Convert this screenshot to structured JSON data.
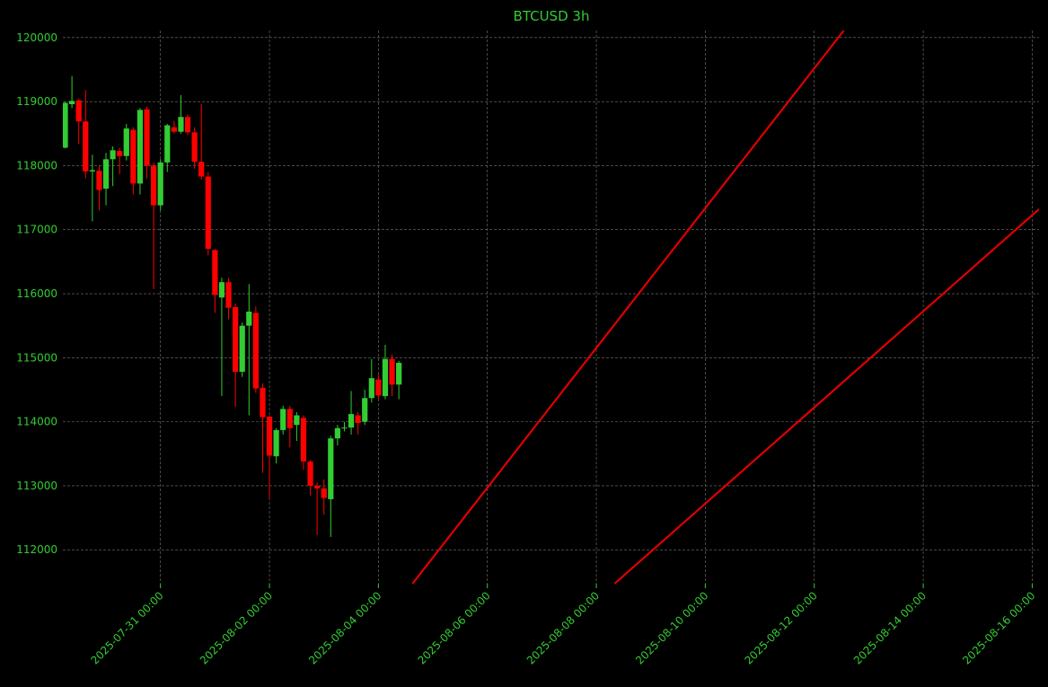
{
  "chart_data": {
    "type": "candlestick",
    "title": "BTCUSD 3h",
    "x": [
      "2025-07-29 06:00",
      "2025-07-29 09:00",
      "2025-07-29 12:00",
      "2025-07-29 15:00",
      "2025-07-29 18:00",
      "2025-07-29 21:00",
      "2025-07-30 00:00",
      "2025-07-30 03:00",
      "2025-07-30 06:00",
      "2025-07-30 09:00",
      "2025-07-30 12:00",
      "2025-07-30 15:00",
      "2025-07-30 18:00",
      "2025-07-30 21:00",
      "2025-07-31 00:00",
      "2025-07-31 03:00",
      "2025-07-31 06:00",
      "2025-07-31 09:00",
      "2025-07-31 12:00",
      "2025-07-31 15:00",
      "2025-07-31 18:00",
      "2025-07-31 21:00",
      "2025-08-01 00:00",
      "2025-08-01 03:00",
      "2025-08-01 06:00",
      "2025-08-01 09:00",
      "2025-08-01 12:00",
      "2025-08-01 15:00",
      "2025-08-01 18:00",
      "2025-08-01 21:00",
      "2025-08-02 00:00",
      "2025-08-02 03:00",
      "2025-08-02 06:00",
      "2025-08-02 09:00",
      "2025-08-02 12:00",
      "2025-08-02 15:00",
      "2025-08-02 18:00",
      "2025-08-02 21:00",
      "2025-08-03 00:00",
      "2025-08-03 03:00",
      "2025-08-03 06:00",
      "2025-08-03 09:00",
      "2025-08-03 12:00",
      "2025-08-03 15:00",
      "2025-08-03 18:00",
      "2025-08-03 21:00",
      "2025-08-04 00:00",
      "2025-08-04 03:00",
      "2025-08-04 06:00",
      "2025-08-04 09:00"
    ],
    "open": [
      118280,
      118960,
      119020,
      118690,
      117910,
      117920,
      117640,
      118100,
      118230,
      118150,
      118560,
      117720,
      118880,
      118000,
      117380,
      118050,
      118600,
      118530,
      118760,
      118520,
      118060,
      117830,
      116680,
      115940,
      116180,
      115790,
      114780,
      115500,
      115700,
      114530,
      114080,
      113460,
      113870,
      114200,
      113950,
      114060,
      113380,
      113000,
      112960,
      112790,
      113740,
      113900,
      113910,
      114100,
      114000,
      114370,
      114660,
      114400,
      114980,
      114580
    ],
    "high": [
      119000,
      119400,
      119050,
      119180,
      118170,
      118000,
      118200,
      118300,
      118280,
      118650,
      118600,
      118900,
      118920,
      118050,
      118100,
      118650,
      118700,
      119100,
      118800,
      118600,
      118960,
      117900,
      116700,
      116250,
      116250,
      115850,
      115550,
      116150,
      115800,
      114600,
      114100,
      113900,
      114250,
      114250,
      114150,
      114100,
      113400,
      113050,
      113100,
      113780,
      113950,
      114000,
      114480,
      114150,
      114500,
      114980,
      114750,
      115200,
      115050,
      114950
    ],
    "low": [
      118270,
      118900,
      118340,
      117800,
      117130,
      117300,
      117380,
      117680,
      117870,
      118080,
      117550,
      117550,
      117800,
      116070,
      117300,
      117900,
      118500,
      118500,
      118480,
      117950,
      117780,
      116600,
      115700,
      114400,
      115600,
      114230,
      114700,
      114100,
      114450,
      113200,
      112800,
      113350,
      113800,
      113600,
      113700,
      113250,
      112850,
      112230,
      112550,
      112200,
      113630,
      113850,
      113800,
      113800,
      113950,
      114300,
      114350,
      114350,
      114400,
      114350
    ],
    "close": [
      118980,
      119010,
      118690,
      117910,
      117930,
      117620,
      118100,
      118240,
      118150,
      118580,
      117720,
      118870,
      118000,
      117380,
      118050,
      118630,
      118530,
      118760,
      118520,
      118060,
      117830,
      116700,
      115980,
      116180,
      115780,
      114780,
      115500,
      115720,
      114520,
      114070,
      113470,
      113870,
      114200,
      113900,
      114100,
      113380,
      113000,
      112960,
      112810,
      113740,
      113900,
      113910,
      114120,
      113980,
      114370,
      114680,
      114410,
      114980,
      114580,
      114920
    ],
    "up_color": "#32cd32",
    "down_color": "#ff0000",
    "lines": [
      {
        "color": "#e00000",
        "x": [
          "2025-08-04 15:00",
          "2025-08-12 13:00"
        ],
        "y": [
          111470,
          120110
        ]
      },
      {
        "color": "#e00000",
        "x": [
          "2025-08-08 08:00",
          "2025-08-16 03:00"
        ],
        "y": [
          111470,
          117320
        ]
      }
    ],
    "xlim": [
      "2025-07-29 05:00",
      "2025-08-16 03:00"
    ],
    "xticks": [
      "2025-07-31 00:00",
      "2025-08-02 00:00",
      "2025-08-04 00:00",
      "2025-08-06 00:00",
      "2025-08-08 00:00",
      "2025-08-10 00:00",
      "2025-08-12 00:00",
      "2025-08-14 00:00",
      "2025-08-16 00:00"
    ],
    "ylim": [
      111470,
      120110
    ],
    "yticks": [
      112000,
      113000,
      114000,
      115000,
      116000,
      117000,
      118000,
      119000,
      120000
    ],
    "grid": true
  }
}
